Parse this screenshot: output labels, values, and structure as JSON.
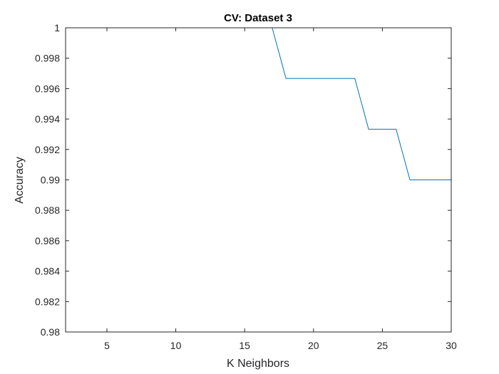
{
  "chart_data": {
    "type": "line",
    "title": "CV: Dataset 3",
    "xlabel": "K Neighbors",
    "ylabel": "Accuracy",
    "xlim": [
      2,
      30
    ],
    "ylim": [
      0.98,
      1.0
    ],
    "x_ticks": [
      5,
      10,
      15,
      20,
      25,
      30
    ],
    "y_ticks": [
      0.98,
      0.982,
      0.984,
      0.986,
      0.988,
      0.99,
      0.992,
      0.994,
      0.996,
      0.998,
      1.0
    ],
    "x_tick_labels": [
      "5",
      "10",
      "15",
      "20",
      "25",
      "30"
    ],
    "y_tick_labels": [
      "0.98",
      "0.982",
      "0.984",
      "0.986",
      "0.988",
      "0.99",
      "0.992",
      "0.994",
      "0.996",
      "0.998",
      "1"
    ],
    "grid": false,
    "series": [
      {
        "color": "#0072BD",
        "x": [
          2,
          3,
          4,
          5,
          6,
          7,
          8,
          9,
          10,
          11,
          12,
          13,
          14,
          15,
          16,
          17,
          18,
          19,
          20,
          21,
          22,
          23,
          24,
          25,
          26,
          27,
          28,
          29,
          30
        ],
        "y": [
          1,
          1,
          1,
          1,
          1,
          1,
          1,
          1,
          1,
          1,
          1,
          1,
          1,
          1,
          1,
          1,
          0.99667,
          0.99667,
          0.99667,
          0.99667,
          0.99667,
          0.99667,
          0.99333,
          0.99333,
          0.99333,
          0.99,
          0.99,
          0.99,
          0.99
        ]
      }
    ]
  }
}
